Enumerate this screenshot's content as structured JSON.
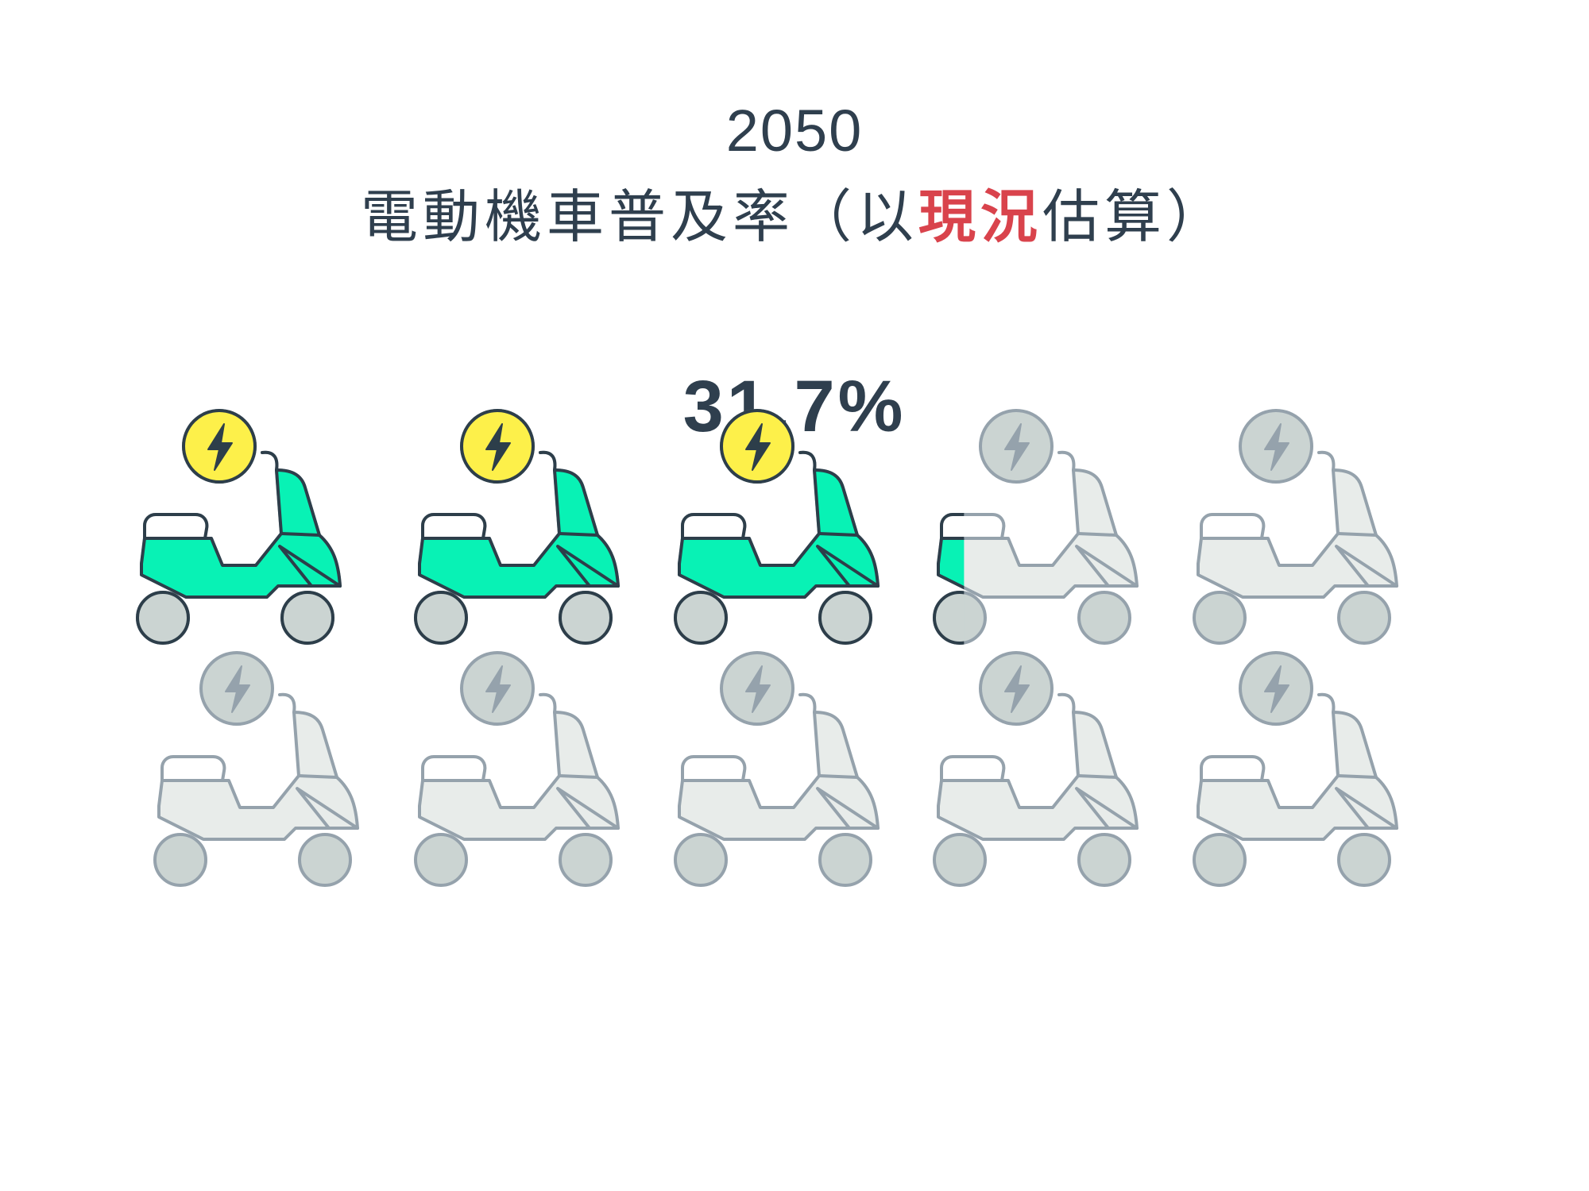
{
  "header": {
    "year": "2050",
    "subtitle_before": "電動機車普及率（以",
    "subtitle_highlight": "現況",
    "subtitle_after": "估算）"
  },
  "stat": {
    "value_label": "31.7%",
    "fraction": 0.317
  },
  "pictogram": {
    "total_icons": 10,
    "icon": "electric-scooter-icon",
    "badge_icon": "lightning-bolt-icon",
    "colors": {
      "active_body": "#08f2b5",
      "active_badge": "#fdf04a",
      "inactive_body": "#e8ecea",
      "inactive_badge": "#cbd4d2",
      "wheel": "#cbd4d2",
      "active_stroke": "#2d3e4a",
      "inactive_stroke": "#95a2ac",
      "highlight": "#d9434c"
    }
  }
}
